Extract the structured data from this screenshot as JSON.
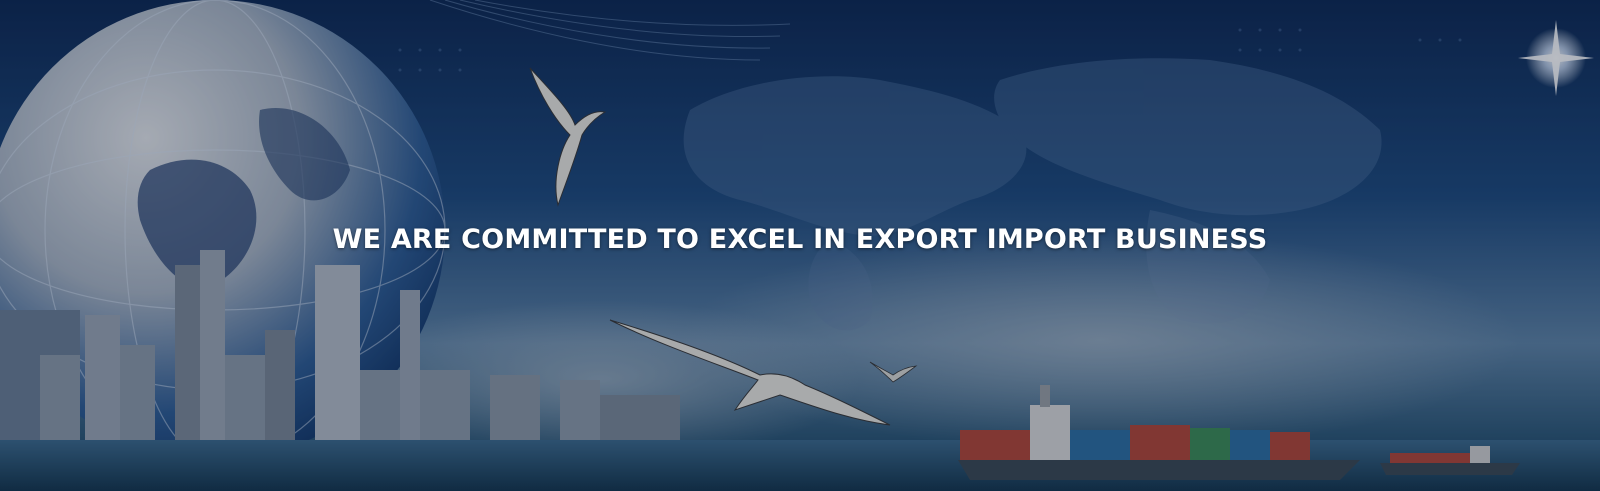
{
  "banner": {
    "headline": "WE ARE COMMITTED TO EXCEL IN EXPORT IMPORT BUSINESS"
  },
  "colors": {
    "sky_top": "#0f2a55",
    "sky_mid": "#1f4b7e",
    "horizon": "#5f84a6",
    "sea": "#1d425f",
    "headline": "#ffffff"
  },
  "imagery": {
    "globe": "globe-icon",
    "city": "city-skyline",
    "birds": "seagull-icon",
    "ship": "container-ship-icon",
    "star": "sparkle-icon"
  }
}
